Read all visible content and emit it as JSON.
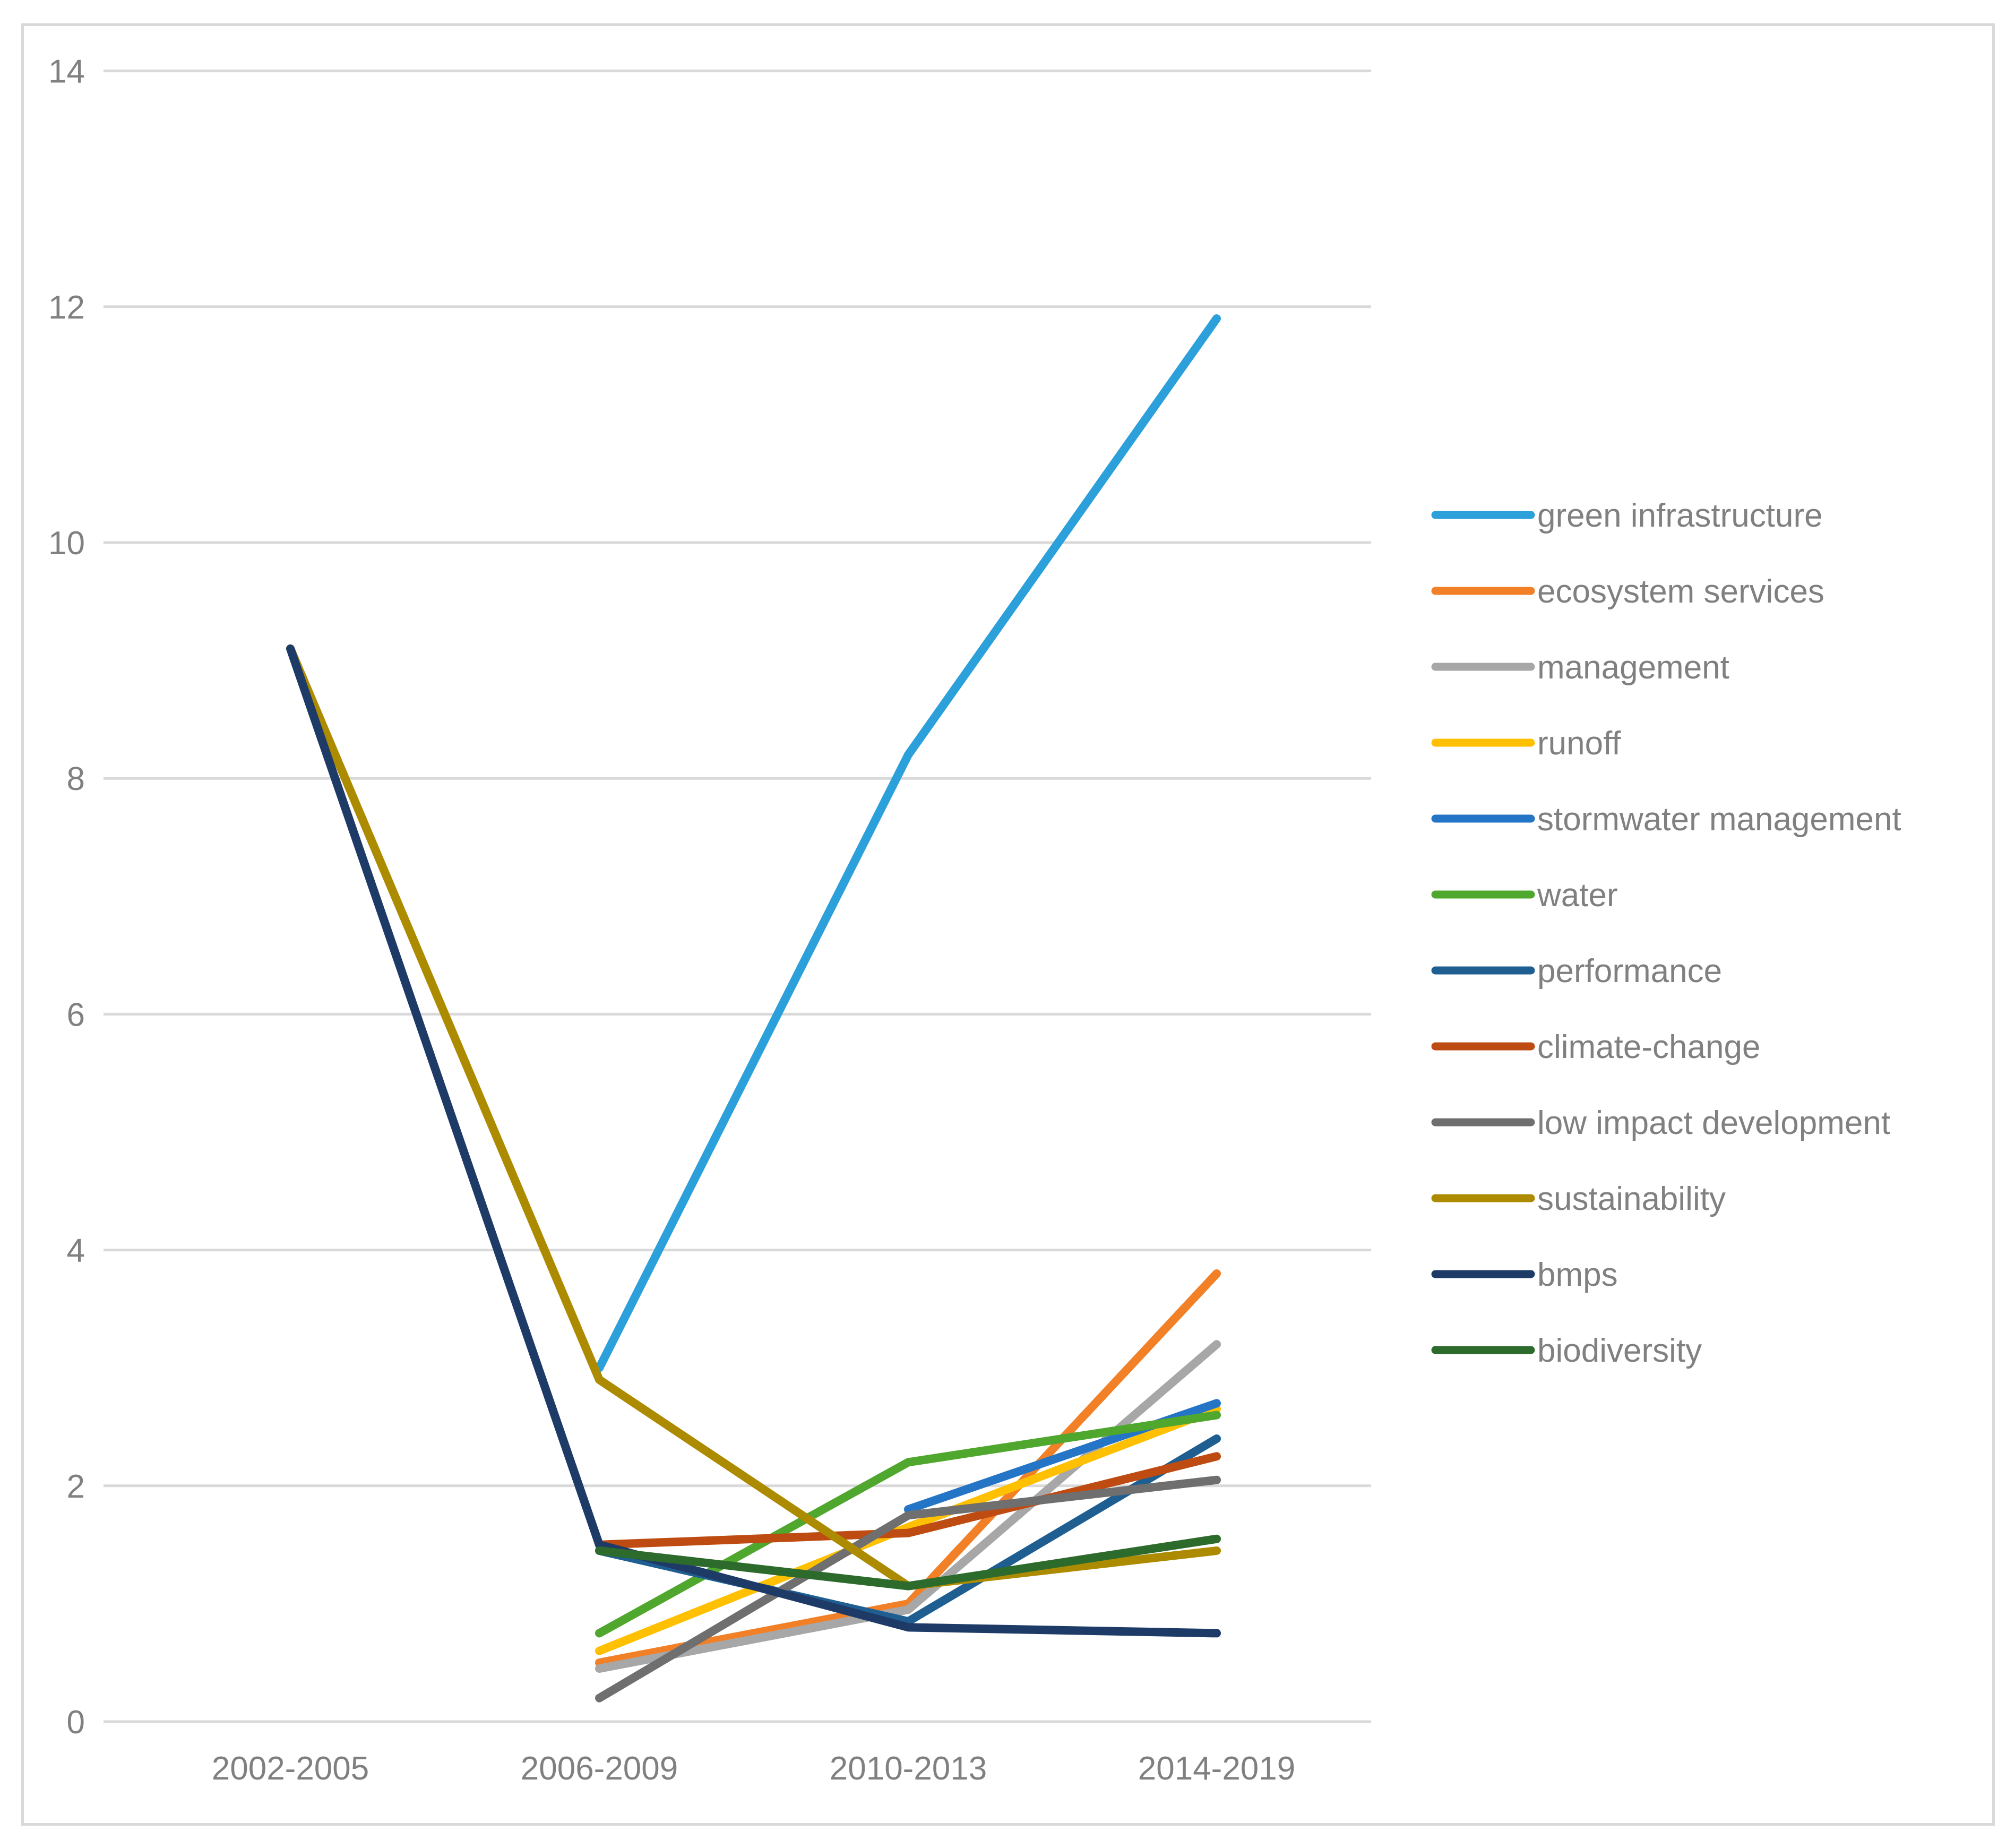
{
  "chart_data": {
    "type": "line",
    "title": "",
    "xlabel": "",
    "ylabel": "",
    "categories": [
      "2002-2005",
      "2006-2009",
      "2010-2013",
      "2014-2019"
    ],
    "yticks": [
      0,
      2,
      4,
      6,
      8,
      10,
      12,
      14
    ],
    "ylim": [
      0,
      14
    ],
    "grid": "horizontal",
    "legend_position": "right",
    "gridline_color": "#D9D9D9",
    "border_color": "#D9D9D9",
    "axis_text_color": "#808080",
    "background_color": "#FFFFFF",
    "series": [
      {
        "name": "green infrastructure",
        "color": "#2BA0DA",
        "values": [
          null,
          3.0,
          8.2,
          11.9
        ]
      },
      {
        "name": "ecosystem services",
        "color": "#F28027",
        "values": [
          null,
          0.5,
          1.0,
          3.8
        ]
      },
      {
        "name": "management",
        "color": "#A7A7A7",
        "values": [
          null,
          0.45,
          0.95,
          3.2
        ]
      },
      {
        "name": "runoff",
        "color": "#FEC001",
        "values": [
          null,
          0.6,
          1.65,
          2.65
        ]
      },
      {
        "name": "stormwater management",
        "color": "#2475C6",
        "values": [
          null,
          null,
          1.8,
          2.7
        ]
      },
      {
        "name": "water",
        "color": "#4FA72E",
        "values": [
          null,
          0.75,
          2.2,
          2.6
        ]
      },
      {
        "name": "performance",
        "color": "#1F5E91",
        "values": [
          null,
          1.45,
          0.85,
          2.4
        ]
      },
      {
        "name": "climate-change",
        "color": "#BE4B11",
        "values": [
          null,
          1.5,
          1.6,
          2.25
        ]
      },
      {
        "name": "low impact development",
        "color": "#6F6F6F",
        "values": [
          null,
          0.2,
          1.75,
          2.05
        ]
      },
      {
        "name": "sustainability",
        "color": "#AD8B00",
        "values": [
          9.1,
          2.9,
          1.15,
          1.45
        ]
      },
      {
        "name": "bmps",
        "color": "#1E3B68",
        "values": [
          9.1,
          1.5,
          0.8,
          0.75
        ]
      },
      {
        "name": "biodiversity",
        "color": "#2D6B2D",
        "values": [
          null,
          1.45,
          1.15,
          1.55
        ]
      }
    ]
  }
}
